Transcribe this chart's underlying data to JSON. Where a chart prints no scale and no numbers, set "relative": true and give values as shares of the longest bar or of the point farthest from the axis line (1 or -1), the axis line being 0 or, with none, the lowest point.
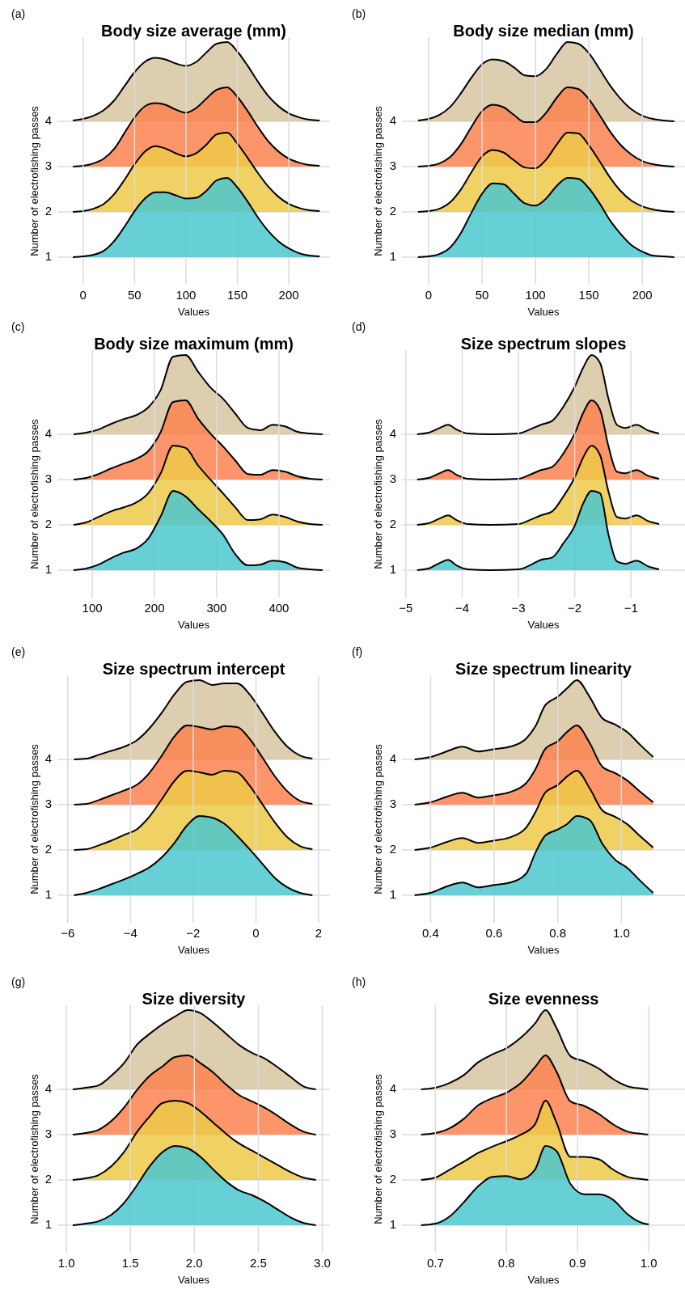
{
  "chart_data": [
    {
      "type": "area",
      "title": "Body size average (mm)",
      "ylabel": "Number of electrofishing passes",
      "annotations": [
        "(a)"
      ],
      "relative": true,
      "xlim": [
        -25,
        240
      ],
      "x": [
        -10,
        0,
        10,
        20,
        30,
        40,
        50,
        60,
        70,
        80,
        90,
        100,
        110,
        120,
        130,
        140,
        150,
        160,
        170,
        180,
        190,
        200,
        210,
        220,
        230
      ],
      "series": [
        {
          "name": "4",
          "color": "#d8c5a2",
          "values": [
            0.01,
            0.03,
            0.07,
            0.14,
            0.26,
            0.44,
            0.62,
            0.75,
            0.8,
            0.78,
            0.73,
            0.7,
            0.75,
            0.87,
            0.98,
            1.0,
            0.88,
            0.7,
            0.5,
            0.32,
            0.19,
            0.1,
            0.05,
            0.02,
            0.01
          ]
        }
      ]
    },
    {
      "type": "area",
      "relative": true,
      "xlim": [
        -25,
        240
      ],
      "x": [
        -10,
        0,
        10,
        20,
        30,
        40,
        50,
        60,
        70,
        80,
        90,
        100,
        110,
        120,
        130,
        140,
        150,
        160,
        170,
        180,
        190,
        200,
        210,
        220,
        230
      ],
      "series": [
        {
          "name": "3",
          "color": "#fb8350",
          "values": [
            0,
            0.01,
            0.04,
            0.1,
            0.22,
            0.42,
            0.62,
            0.76,
            0.8,
            0.78,
            0.72,
            0.68,
            0.74,
            0.86,
            0.97,
            1.0,
            0.88,
            0.7,
            0.5,
            0.32,
            0.19,
            0.1,
            0.05,
            0.02,
            0.01
          ]
        }
      ]
    },
    {
      "type": "area",
      "relative": true,
      "xlim": [
        -25,
        240
      ],
      "x": [
        -10,
        0,
        10,
        20,
        30,
        40,
        50,
        60,
        70,
        80,
        90,
        100,
        110,
        120,
        130,
        140,
        150,
        160,
        170,
        180,
        190,
        200,
        210,
        220,
        230
      ],
      "series": [
        {
          "name": "2",
          "color": "#edc948",
          "values": [
            0,
            0.01,
            0.04,
            0.1,
            0.22,
            0.4,
            0.6,
            0.76,
            0.83,
            0.8,
            0.74,
            0.7,
            0.74,
            0.85,
            0.98,
            1.0,
            0.86,
            0.68,
            0.49,
            0.32,
            0.19,
            0.1,
            0.05,
            0.02,
            0.01
          ]
        }
      ]
    },
    {
      "type": "area",
      "xlabel": "Values",
      "grid": "x",
      "relative": true,
      "xlim": [
        -25,
        240
      ],
      "xticks": [
        0,
        50,
        100,
        150,
        200
      ],
      "x": [
        -10,
        0,
        10,
        20,
        30,
        40,
        50,
        60,
        70,
        80,
        90,
        100,
        110,
        120,
        130,
        140,
        150,
        160,
        170,
        180,
        190,
        200,
        210,
        220,
        230
      ],
      "series": [
        {
          "name": "1",
          "color": "#4cc7cf",
          "values": [
            0,
            0.01,
            0.03,
            0.08,
            0.2,
            0.38,
            0.58,
            0.74,
            0.82,
            0.82,
            0.78,
            0.74,
            0.75,
            0.84,
            0.97,
            1.0,
            0.88,
            0.7,
            0.5,
            0.33,
            0.2,
            0.11,
            0.05,
            0.02,
            0.01
          ]
        }
      ]
    },
    {
      "type": "area",
      "title": "Body size median (mm)",
      "ylabel": "Number of electrofishing passes",
      "annotations": [
        "(b)"
      ],
      "relative": true,
      "xlim": [
        -25,
        240
      ],
      "x": [
        -10,
        0,
        10,
        20,
        30,
        40,
        50,
        60,
        70,
        80,
        90,
        100,
        110,
        120,
        130,
        140,
        150,
        160,
        170,
        180,
        190,
        200,
        210,
        220,
        230
      ],
      "series": [
        {
          "name": "4",
          "color": "#d8c5a2",
          "values": [
            0.01,
            0.03,
            0.08,
            0.18,
            0.35,
            0.55,
            0.72,
            0.78,
            0.76,
            0.68,
            0.58,
            0.57,
            0.66,
            0.85,
            1.0,
            0.98,
            0.86,
            0.66,
            0.45,
            0.28,
            0.15,
            0.07,
            0.03,
            0.01,
            0
          ]
        }
      ]
    },
    {
      "type": "area",
      "relative": true,
      "xlim": [
        -25,
        240
      ],
      "x": [
        -10,
        0,
        10,
        20,
        30,
        40,
        50,
        60,
        70,
        80,
        90,
        100,
        110,
        120,
        130,
        140,
        150,
        160,
        170,
        180,
        190,
        200,
        210,
        220,
        230
      ],
      "series": [
        {
          "name": "3",
          "color": "#fb8350",
          "values": [
            0,
            0.01,
            0.04,
            0.12,
            0.28,
            0.5,
            0.7,
            0.78,
            0.75,
            0.65,
            0.56,
            0.56,
            0.68,
            0.87,
            1.0,
            0.98,
            0.85,
            0.65,
            0.44,
            0.27,
            0.15,
            0.07,
            0.03,
            0.01,
            0
          ]
        }
      ]
    },
    {
      "type": "area",
      "relative": true,
      "xlim": [
        -25,
        240
      ],
      "x": [
        -10,
        0,
        10,
        20,
        30,
        40,
        50,
        60,
        70,
        80,
        90,
        100,
        110,
        120,
        130,
        140,
        150,
        160,
        170,
        180,
        190,
        200,
        210,
        220,
        230
      ],
      "series": [
        {
          "name": "2",
          "color": "#edc948",
          "values": [
            0,
            0.01,
            0.04,
            0.12,
            0.28,
            0.5,
            0.7,
            0.78,
            0.75,
            0.65,
            0.56,
            0.55,
            0.66,
            0.85,
            1.0,
            0.99,
            0.84,
            0.64,
            0.43,
            0.26,
            0.14,
            0.07,
            0.03,
            0.01,
            0
          ]
        }
      ]
    },
    {
      "type": "area",
      "xlabel": "Values",
      "grid": "x",
      "relative": true,
      "xlim": [
        -25,
        240
      ],
      "xticks": [
        0,
        50,
        100,
        150,
        200
      ],
      "x": [
        -10,
        0,
        10,
        20,
        30,
        40,
        50,
        60,
        70,
        80,
        90,
        100,
        110,
        120,
        130,
        140,
        150,
        160,
        170,
        180,
        190,
        200,
        210,
        220,
        230
      ],
      "series": [
        {
          "name": "1",
          "color": "#4cc7cf",
          "values": [
            0,
            0.01,
            0.04,
            0.12,
            0.3,
            0.56,
            0.8,
            0.93,
            0.92,
            0.8,
            0.68,
            0.65,
            0.74,
            0.9,
            1.0,
            0.99,
            0.87,
            0.68,
            0.46,
            0.29,
            0.15,
            0.07,
            0.02,
            0.01,
            0
          ]
        }
      ]
    },
    {
      "type": "area",
      "title": "Body size maximum (mm)",
      "ylabel": "Number of electrofishing passes",
      "annotations": [
        "(c)"
      ],
      "relative": true,
      "xlim": [
        44,
        482
      ],
      "x": [
        70,
        90,
        110,
        130,
        150,
        170,
        190,
        210,
        230,
        250,
        270,
        290,
        310,
        330,
        350,
        370,
        390,
        410,
        430,
        450,
        470
      ],
      "series": [
        {
          "name": "4",
          "color": "#d8c5a2",
          "values": [
            0,
            0.02,
            0.06,
            0.13,
            0.19,
            0.24,
            0.34,
            0.56,
            0.98,
            1.0,
            0.79,
            0.59,
            0.45,
            0.26,
            0.08,
            0.05,
            0.12,
            0.1,
            0.03,
            0.01,
            0
          ]
        }
      ]
    },
    {
      "type": "area",
      "relative": true,
      "xlim": [
        44,
        482
      ],
      "x": [
        70,
        90,
        110,
        130,
        150,
        170,
        190,
        210,
        230,
        250,
        270,
        290,
        310,
        330,
        350,
        370,
        390,
        410,
        430,
        450,
        470
      ],
      "series": [
        {
          "name": "3",
          "color": "#fb8350",
          "values": [
            0,
            0.02,
            0.07,
            0.14,
            0.2,
            0.26,
            0.36,
            0.6,
            0.98,
            1.0,
            0.77,
            0.58,
            0.42,
            0.24,
            0.07,
            0.06,
            0.12,
            0.1,
            0.04,
            0.01,
            0
          ]
        }
      ]
    },
    {
      "type": "area",
      "relative": true,
      "xlim": [
        44,
        482
      ],
      "x": [
        70,
        90,
        110,
        130,
        150,
        170,
        190,
        210,
        230,
        250,
        270,
        290,
        310,
        330,
        350,
        370,
        390,
        410,
        430,
        450,
        470
      ],
      "series": [
        {
          "name": "2",
          "color": "#edc948",
          "values": [
            0,
            0.03,
            0.1,
            0.17,
            0.22,
            0.28,
            0.4,
            0.65,
            1.0,
            0.97,
            0.75,
            0.57,
            0.4,
            0.22,
            0.06,
            0.07,
            0.13,
            0.1,
            0.04,
            0.01,
            0
          ]
        }
      ]
    },
    {
      "type": "area",
      "xlabel": "Values",
      "grid": "x",
      "relative": true,
      "xlim": [
        44,
        482
      ],
      "xticks": [
        100,
        200,
        300,
        400
      ],
      "x": [
        70,
        90,
        110,
        130,
        150,
        170,
        190,
        210,
        230,
        250,
        270,
        290,
        310,
        330,
        350,
        370,
        390,
        410,
        430,
        450,
        470
      ],
      "series": [
        {
          "name": "1",
          "color": "#4cc7cf",
          "values": [
            0,
            0.02,
            0.07,
            0.15,
            0.22,
            0.27,
            0.4,
            0.68,
            1.0,
            0.93,
            0.77,
            0.62,
            0.45,
            0.2,
            0.06,
            0.07,
            0.12,
            0.1,
            0.03,
            0.01,
            0
          ]
        }
      ]
    },
    {
      "type": "area",
      "title": "Size spectrum slopes",
      "ylabel": "Number of electrofishing passes",
      "annotations": [
        "(d)"
      ],
      "relative": true,
      "xlim": [
        -5.07,
        -0.04
      ],
      "x": [
        -4.8,
        -4.6,
        -4.4,
        -4.25,
        -4.1,
        -3.9,
        -3.5,
        -3.0,
        -2.8,
        -2.6,
        -2.4,
        -2.2,
        -2.0,
        -1.85,
        -1.7,
        -1.55,
        -1.4,
        -1.25,
        -1.1,
        -0.9,
        -0.7,
        -0.5
      ],
      "series": [
        {
          "name": "4",
          "color": "#d8c5a2",
          "values": [
            0,
            0.02,
            0.08,
            0.12,
            0.06,
            0.01,
            0,
            0.01,
            0.06,
            0.12,
            0.17,
            0.35,
            0.6,
            0.84,
            1.0,
            0.9,
            0.45,
            0.12,
            0.08,
            0.12,
            0.05,
            0.01
          ]
        }
      ]
    },
    {
      "type": "area",
      "relative": true,
      "xlim": [
        -5.07,
        -0.04
      ],
      "x": [
        -4.8,
        -4.6,
        -4.4,
        -4.25,
        -4.1,
        -3.9,
        -3.5,
        -3.0,
        -2.8,
        -2.6,
        -2.4,
        -2.2,
        -2.0,
        -1.85,
        -1.7,
        -1.55,
        -1.4,
        -1.25,
        -1.1,
        -0.9,
        -0.7,
        -0.5
      ],
      "series": [
        {
          "name": "3",
          "color": "#fb8350",
          "values": [
            0,
            0.02,
            0.08,
            0.12,
            0.06,
            0.01,
            0,
            0.01,
            0.06,
            0.12,
            0.16,
            0.33,
            0.58,
            0.84,
            1.0,
            0.88,
            0.42,
            0.1,
            0.08,
            0.12,
            0.05,
            0.01
          ]
        }
      ]
    },
    {
      "type": "area",
      "relative": true,
      "xlim": [
        -5.07,
        -0.04
      ],
      "x": [
        -4.8,
        -4.6,
        -4.4,
        -4.25,
        -4.1,
        -3.9,
        -3.5,
        -3.0,
        -2.8,
        -2.6,
        -2.4,
        -2.2,
        -2.0,
        -1.85,
        -1.7,
        -1.55,
        -1.4,
        -1.25,
        -1.1,
        -0.9,
        -0.7,
        -0.5
      ],
      "series": [
        {
          "name": "2",
          "color": "#edc948",
          "values": [
            0,
            0.02,
            0.08,
            0.12,
            0.06,
            0.01,
            0,
            0.01,
            0.06,
            0.12,
            0.17,
            0.36,
            0.6,
            0.85,
            1.0,
            0.88,
            0.42,
            0.1,
            0.08,
            0.12,
            0.05,
            0.01
          ]
        }
      ]
    },
    {
      "type": "area",
      "xlabel": "Values",
      "grid": "x",
      "relative": true,
      "xlim": [
        -5.07,
        -0.04
      ],
      "xticks": [
        -5,
        -4,
        -3,
        -2,
        -1
      ],
      "x": [
        -4.8,
        -4.6,
        -4.4,
        -4.25,
        -4.1,
        -3.9,
        -3.5,
        -3.0,
        -2.8,
        -2.6,
        -2.4,
        -2.2,
        -2.0,
        -1.85,
        -1.7,
        -1.55,
        -1.4,
        -1.25,
        -1.1,
        -0.9,
        -0.7,
        -0.5
      ],
      "series": [
        {
          "name": "1",
          "color": "#4cc7cf",
          "values": [
            0,
            0.02,
            0.09,
            0.13,
            0.06,
            0.01,
            0,
            0.01,
            0.06,
            0.13,
            0.16,
            0.34,
            0.56,
            0.84,
            1.0,
            0.97,
            0.45,
            0.11,
            0.08,
            0.12,
            0.05,
            0.01
          ]
        }
      ]
    },
    {
      "type": "area",
      "title": "Size spectrum intercept",
      "ylabel": "Number of electrofishing passes",
      "annotations": [
        "(e)"
      ],
      "relative": true,
      "xlim": [
        -6.33,
        2.36
      ],
      "x": [
        -5.8,
        -5.4,
        -5.0,
        -4.6,
        -4.2,
        -3.8,
        -3.4,
        -3.0,
        -2.6,
        -2.2,
        -1.8,
        -1.4,
        -1.0,
        -0.6,
        -0.2,
        0.2,
        0.6,
        1.0,
        1.4,
        1.8
      ],
      "series": [
        {
          "name": "4",
          "color": "#d8c5a2",
          "values": [
            0,
            0.01,
            0.06,
            0.11,
            0.16,
            0.24,
            0.39,
            0.59,
            0.82,
            0.98,
            1.0,
            0.94,
            0.96,
            0.96,
            0.82,
            0.59,
            0.35,
            0.16,
            0.05,
            0.01
          ]
        }
      ]
    },
    {
      "type": "area",
      "relative": true,
      "xlim": [
        -6.33,
        2.36
      ],
      "x": [
        -5.8,
        -5.4,
        -5.0,
        -4.6,
        -4.2,
        -3.8,
        -3.4,
        -3.0,
        -2.6,
        -2.2,
        -1.8,
        -1.4,
        -1.0,
        -0.6,
        -0.2,
        0.2,
        0.6,
        1.0,
        1.4,
        1.8
      ],
      "series": [
        {
          "name": "3",
          "color": "#fb8350",
          "values": [
            0,
            0.01,
            0.06,
            0.12,
            0.18,
            0.25,
            0.4,
            0.62,
            0.86,
            1.0,
            0.98,
            0.95,
            0.99,
            0.98,
            0.83,
            0.6,
            0.36,
            0.17,
            0.05,
            0.01
          ]
        }
      ]
    },
    {
      "type": "area",
      "relative": true,
      "xlim": [
        -6.33,
        2.36
      ],
      "x": [
        -5.8,
        -5.4,
        -5.0,
        -4.6,
        -4.2,
        -3.8,
        -3.4,
        -3.0,
        -2.6,
        -2.2,
        -1.8,
        -1.4,
        -1.0,
        -0.6,
        -0.2,
        0.2,
        0.6,
        1.0,
        1.4,
        1.8
      ],
      "series": [
        {
          "name": "2",
          "color": "#edc948",
          "values": [
            0,
            0.01,
            0.06,
            0.12,
            0.19,
            0.26,
            0.42,
            0.64,
            0.87,
            1.0,
            0.98,
            0.95,
            1.0,
            0.98,
            0.81,
            0.58,
            0.35,
            0.16,
            0.05,
            0.01
          ]
        }
      ]
    },
    {
      "type": "area",
      "xlabel": "Values",
      "grid": "x",
      "relative": true,
      "xlim": [
        -6.33,
        2.36
      ],
      "xticks": [
        -6,
        -4,
        -2,
        0,
        2
      ],
      "x": [
        -5.8,
        -5.4,
        -5.0,
        -4.6,
        -4.2,
        -3.8,
        -3.4,
        -3.0,
        -2.6,
        -2.2,
        -1.8,
        -1.4,
        -1.0,
        -0.6,
        -0.2,
        0.2,
        0.6,
        1.0,
        1.4,
        1.8
      ],
      "series": [
        {
          "name": "1",
          "color": "#4cc7cf",
          "values": [
            0,
            0.03,
            0.08,
            0.14,
            0.2,
            0.27,
            0.35,
            0.48,
            0.66,
            0.88,
            1.0,
            0.98,
            0.9,
            0.75,
            0.58,
            0.4,
            0.22,
            0.1,
            0.03,
            0
          ]
        }
      ]
    },
    {
      "type": "area",
      "title": "Size spectrum linearity",
      "ylabel": "Number of electrofishing passes",
      "annotations": [
        "(f)"
      ],
      "relative": true,
      "xlim": [
        0.31,
        1.2
      ],
      "x": [
        0.35,
        0.4,
        0.45,
        0.5,
        0.55,
        0.6,
        0.65,
        0.7,
        0.73,
        0.76,
        0.8,
        0.83,
        0.86,
        0.9,
        0.94,
        0.98,
        1.02,
        1.06,
        1.1
      ],
      "series": [
        {
          "name": "4",
          "color": "#d8c5a2",
          "values": [
            0,
            0.03,
            0.1,
            0.16,
            0.1,
            0.13,
            0.16,
            0.26,
            0.42,
            0.68,
            0.79,
            0.9,
            1.0,
            0.79,
            0.52,
            0.44,
            0.34,
            0.18,
            0.03
          ]
        }
      ]
    },
    {
      "type": "area",
      "relative": true,
      "xlim": [
        0.31,
        1.2
      ],
      "x": [
        0.35,
        0.4,
        0.45,
        0.5,
        0.55,
        0.6,
        0.65,
        0.7,
        0.73,
        0.76,
        0.8,
        0.83,
        0.86,
        0.9,
        0.94,
        0.98,
        1.02,
        1.06,
        1.1
      ],
      "series": [
        {
          "name": "3",
          "color": "#fb8350",
          "values": [
            0,
            0.03,
            0.1,
            0.15,
            0.09,
            0.12,
            0.16,
            0.27,
            0.45,
            0.7,
            0.8,
            0.92,
            1.0,
            0.78,
            0.48,
            0.4,
            0.3,
            0.16,
            0.03
          ]
        }
      ]
    },
    {
      "type": "area",
      "relative": true,
      "xlim": [
        0.31,
        1.2
      ],
      "x": [
        0.35,
        0.4,
        0.45,
        0.5,
        0.55,
        0.6,
        0.65,
        0.7,
        0.73,
        0.76,
        0.8,
        0.83,
        0.86,
        0.9,
        0.94,
        0.98,
        1.02,
        1.06,
        1.1
      ],
      "series": [
        {
          "name": "2",
          "color": "#edc948",
          "values": [
            0,
            0.03,
            0.1,
            0.15,
            0.09,
            0.12,
            0.16,
            0.28,
            0.48,
            0.72,
            0.82,
            0.93,
            1.0,
            0.78,
            0.5,
            0.42,
            0.32,
            0.17,
            0.03
          ]
        }
      ]
    },
    {
      "type": "area",
      "xlabel": "Values",
      "grid": "x",
      "relative": true,
      "xlim": [
        0.31,
        1.2
      ],
      "xticks": [
        0.4,
        0.6,
        0.8,
        {
          "value": 1,
          "label": "1.0"
        }
      ],
      "x": [
        0.35,
        0.4,
        0.45,
        0.5,
        0.55,
        0.6,
        0.65,
        0.7,
        0.73,
        0.76,
        0.8,
        0.83,
        0.86,
        0.9,
        0.94,
        0.98,
        1.02,
        1.06,
        1.1
      ],
      "series": [
        {
          "name": "1",
          "color": "#4cc7cf",
          "values": [
            0,
            0.03,
            0.11,
            0.16,
            0.1,
            0.13,
            0.16,
            0.27,
            0.54,
            0.75,
            0.83,
            0.9,
            1.0,
            0.95,
            0.65,
            0.45,
            0.34,
            0.18,
            0.03
          ]
        }
      ]
    },
    {
      "type": "area",
      "title": "Size diversity",
      "ylabel": "Number of electrofishing passes",
      "annotations": [
        "(g)"
      ],
      "relative": true,
      "xlim": [
        0.93,
        3.06
      ],
      "x": [
        1.05,
        1.15,
        1.25,
        1.35,
        1.45,
        1.55,
        1.65,
        1.75,
        1.85,
        1.95,
        2.05,
        2.15,
        2.25,
        2.35,
        2.45,
        2.55,
        2.65,
        2.75,
        2.85,
        2.95
      ],
      "series": [
        {
          "name": "4",
          "color": "#d8c5a2",
          "values": [
            0,
            0.02,
            0.05,
            0.17,
            0.33,
            0.56,
            0.7,
            0.82,
            0.92,
            1.0,
            0.96,
            0.84,
            0.7,
            0.56,
            0.46,
            0.39,
            0.28,
            0.16,
            0.04,
            0
          ]
        }
      ]
    },
    {
      "type": "area",
      "relative": true,
      "xlim": [
        0.93,
        3.06
      ],
      "x": [
        1.05,
        1.15,
        1.25,
        1.35,
        1.45,
        1.55,
        1.65,
        1.75,
        1.85,
        1.95,
        2.05,
        2.15,
        2.25,
        2.35,
        2.45,
        2.55,
        2.65,
        2.75,
        2.85,
        2.95
      ],
      "series": [
        {
          "name": "3",
          "color": "#fb8350",
          "values": [
            0,
            0.02,
            0.06,
            0.17,
            0.34,
            0.56,
            0.74,
            0.86,
            0.98,
            1.0,
            0.9,
            0.78,
            0.63,
            0.5,
            0.42,
            0.34,
            0.24,
            0.13,
            0.04,
            0
          ]
        }
      ]
    },
    {
      "type": "area",
      "relative": true,
      "xlim": [
        0.93,
        3.06
      ],
      "x": [
        1.05,
        1.15,
        1.25,
        1.35,
        1.45,
        1.55,
        1.65,
        1.75,
        1.85,
        1.95,
        2.05,
        2.15,
        2.25,
        2.35,
        2.45,
        2.55,
        2.65,
        2.75,
        2.85,
        2.95
      ],
      "series": [
        {
          "name": "2",
          "color": "#edc948",
          "values": [
            0,
            0.02,
            0.06,
            0.17,
            0.35,
            0.6,
            0.8,
            0.97,
            1.0,
            0.97,
            0.86,
            0.72,
            0.58,
            0.46,
            0.37,
            0.28,
            0.19,
            0.1,
            0.03,
            0
          ]
        }
      ]
    },
    {
      "type": "area",
      "xlabel": "Values",
      "grid": "x",
      "relative": true,
      "xlim": [
        0.93,
        3.06
      ],
      "xticks": [
        {
          "value": 1,
          "label": "1.0"
        },
        1.5,
        {
          "value": 2,
          "label": "2.0"
        },
        2.5,
        {
          "value": 3,
          "label": "3.0"
        }
      ],
      "x": [
        1.05,
        1.15,
        1.25,
        1.35,
        1.45,
        1.55,
        1.65,
        1.75,
        1.85,
        1.95,
        2.05,
        2.15,
        2.25,
        2.35,
        2.45,
        2.55,
        2.65,
        2.75,
        2.85,
        2.95
      ],
      "series": [
        {
          "name": "1",
          "color": "#4cc7cf",
          "values": [
            0,
            0.02,
            0.05,
            0.13,
            0.28,
            0.5,
            0.74,
            0.92,
            1.0,
            0.97,
            0.86,
            0.7,
            0.55,
            0.44,
            0.38,
            0.3,
            0.2,
            0.1,
            0.03,
            0
          ]
        }
      ]
    },
    {
      "type": "area",
      "title": "Size evenness",
      "ylabel": "Number of electrofishing passes",
      "annotations": [
        "(h)"
      ],
      "relative": true,
      "xlim": [
        0.653,
        1.051
      ],
      "x": [
        0.68,
        0.7,
        0.72,
        0.74,
        0.76,
        0.78,
        0.8,
        0.82,
        0.84,
        0.855,
        0.87,
        0.89,
        0.91,
        0.93,
        0.95,
        0.97,
        0.99,
        1.0
      ],
      "series": [
        {
          "name": "4",
          "color": "#d8c5a2",
          "values": [
            0,
            0.02,
            0.08,
            0.18,
            0.34,
            0.44,
            0.52,
            0.65,
            0.83,
            1.0,
            0.78,
            0.42,
            0.35,
            0.26,
            0.13,
            0.04,
            0.01,
            0
          ]
        }
      ]
    },
    {
      "type": "area",
      "relative": true,
      "xlim": [
        0.653,
        1.051
      ],
      "x": [
        0.68,
        0.7,
        0.72,
        0.74,
        0.76,
        0.78,
        0.8,
        0.82,
        0.84,
        0.855,
        0.87,
        0.89,
        0.91,
        0.93,
        0.95,
        0.97,
        0.99,
        1.0
      ],
      "series": [
        {
          "name": "3",
          "color": "#fb8350",
          "values": [
            0,
            0.02,
            0.08,
            0.2,
            0.37,
            0.46,
            0.53,
            0.65,
            0.85,
            1.0,
            0.8,
            0.42,
            0.36,
            0.26,
            0.13,
            0.04,
            0.01,
            0
          ]
        }
      ]
    },
    {
      "type": "area",
      "relative": true,
      "xlim": [
        0.653,
        1.051
      ],
      "x": [
        0.68,
        0.7,
        0.72,
        0.74,
        0.76,
        0.78,
        0.8,
        0.82,
        0.84,
        0.855,
        0.87,
        0.89,
        0.91,
        0.93,
        0.95,
        0.97,
        0.99,
        1.0
      ],
      "series": [
        {
          "name": "2",
          "color": "#edc948",
          "values": [
            0,
            0.03,
            0.13,
            0.23,
            0.34,
            0.42,
            0.49,
            0.57,
            0.7,
            1.0,
            0.73,
            0.29,
            0.29,
            0.26,
            0.13,
            0.04,
            0.01,
            0
          ]
        }
      ]
    },
    {
      "type": "area",
      "xlabel": "Values",
      "grid": "x",
      "relative": true,
      "xlim": [
        0.653,
        1.051
      ],
      "xticks": [
        0.7,
        0.8,
        0.9,
        {
          "value": 1,
          "label": "1.0"
        }
      ],
      "x": [
        0.68,
        0.7,
        0.72,
        0.74,
        0.76,
        0.78,
        0.8,
        0.82,
        0.84,
        0.855,
        0.87,
        0.89,
        0.91,
        0.93,
        0.95,
        0.97,
        0.99,
        1.0
      ],
      "series": [
        {
          "name": "1",
          "color": "#4cc7cf",
          "values": [
            0,
            0.02,
            0.11,
            0.29,
            0.49,
            0.61,
            0.62,
            0.58,
            0.7,
            1.0,
            0.94,
            0.52,
            0.39,
            0.39,
            0.32,
            0.14,
            0.03,
            0.01
          ]
        }
      ]
    }
  ]
}
